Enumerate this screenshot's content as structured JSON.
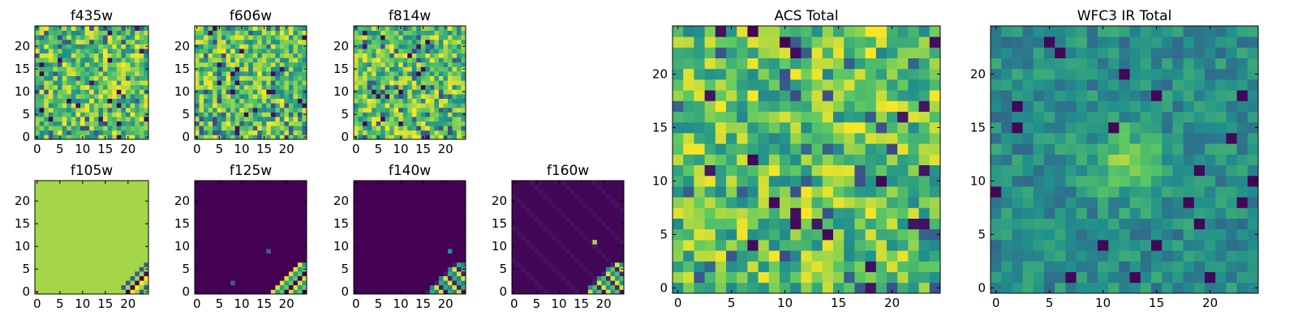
{
  "chart_data": [
    {
      "type": "heatmap",
      "title": "f435w",
      "xticks": [
        0,
        5,
        10,
        15,
        20
      ],
      "yticks": [
        0,
        5,
        10,
        15,
        20
      ],
      "xlim": [
        -0.5,
        24.5
      ],
      "ylim": [
        -0.5,
        24.5
      ],
      "grid": false
    },
    {
      "type": "heatmap",
      "title": "f606w",
      "xticks": [
        0,
        5,
        10,
        15,
        20
      ],
      "yticks": [
        0,
        5,
        10,
        15,
        20
      ],
      "xlim": [
        -0.5,
        24.5
      ],
      "ylim": [
        -0.5,
        24.5
      ],
      "grid": false
    },
    {
      "type": "heatmap",
      "title": "f814w",
      "xticks": [
        0,
        5,
        10,
        15,
        20
      ],
      "yticks": [
        0,
        5,
        10,
        15,
        20
      ],
      "xlim": [
        -0.5,
        24.5
      ],
      "ylim": [
        -0.5,
        24.5
      ],
      "grid": false
    },
    {
      "type": "heatmap",
      "title": "f105w",
      "xticks": [
        0,
        5,
        10,
        15,
        20
      ],
      "yticks": [
        0,
        5,
        10,
        15,
        20
      ],
      "xlim": [
        -0.5,
        24.5
      ],
      "ylim": [
        -0.5,
        24.5
      ],
      "grid": false
    },
    {
      "type": "heatmap",
      "title": "f125w",
      "xticks": [
        0,
        5,
        10,
        15,
        20
      ],
      "yticks": [
        0,
        5,
        10,
        15,
        20
      ],
      "xlim": [
        -0.5,
        24.5
      ],
      "ylim": [
        -0.5,
        24.5
      ],
      "grid": false
    },
    {
      "type": "heatmap",
      "title": "f140w",
      "xticks": [
        0,
        5,
        10,
        15,
        20
      ],
      "yticks": [
        0,
        5,
        10,
        15,
        20
      ],
      "xlim": [
        -0.5,
        24.5
      ],
      "ylim": [
        -0.5,
        24.5
      ],
      "grid": false
    },
    {
      "type": "heatmap",
      "title": "f160w",
      "xticks": [
        0,
        5,
        10,
        15,
        20
      ],
      "yticks": [
        0,
        5,
        10,
        15,
        20
      ],
      "xlim": [
        -0.5,
        24.5
      ],
      "ylim": [
        -0.5,
        24.5
      ],
      "grid": false
    },
    {
      "type": "heatmap",
      "title": "ACS Total",
      "xticks": [
        0,
        5,
        10,
        15,
        20
      ],
      "yticks": [
        0,
        5,
        10,
        15,
        20
      ],
      "xlim": [
        -0.5,
        24.5
      ],
      "ylim": [
        -0.5,
        24.5
      ],
      "grid": false
    },
    {
      "type": "heatmap",
      "title": "WFC3 IR Total",
      "xticks": [
        0,
        5,
        10,
        15,
        20
      ],
      "yticks": [
        0,
        5,
        10,
        15,
        20
      ],
      "xlim": [
        -0.5,
        24.5
      ],
      "ylim": [
        -0.5,
        24.5
      ],
      "grid": false
    }
  ],
  "colormap": [
    "#440154",
    "#3b528b",
    "#21918c",
    "#5ec962",
    "#fde725"
  ]
}
